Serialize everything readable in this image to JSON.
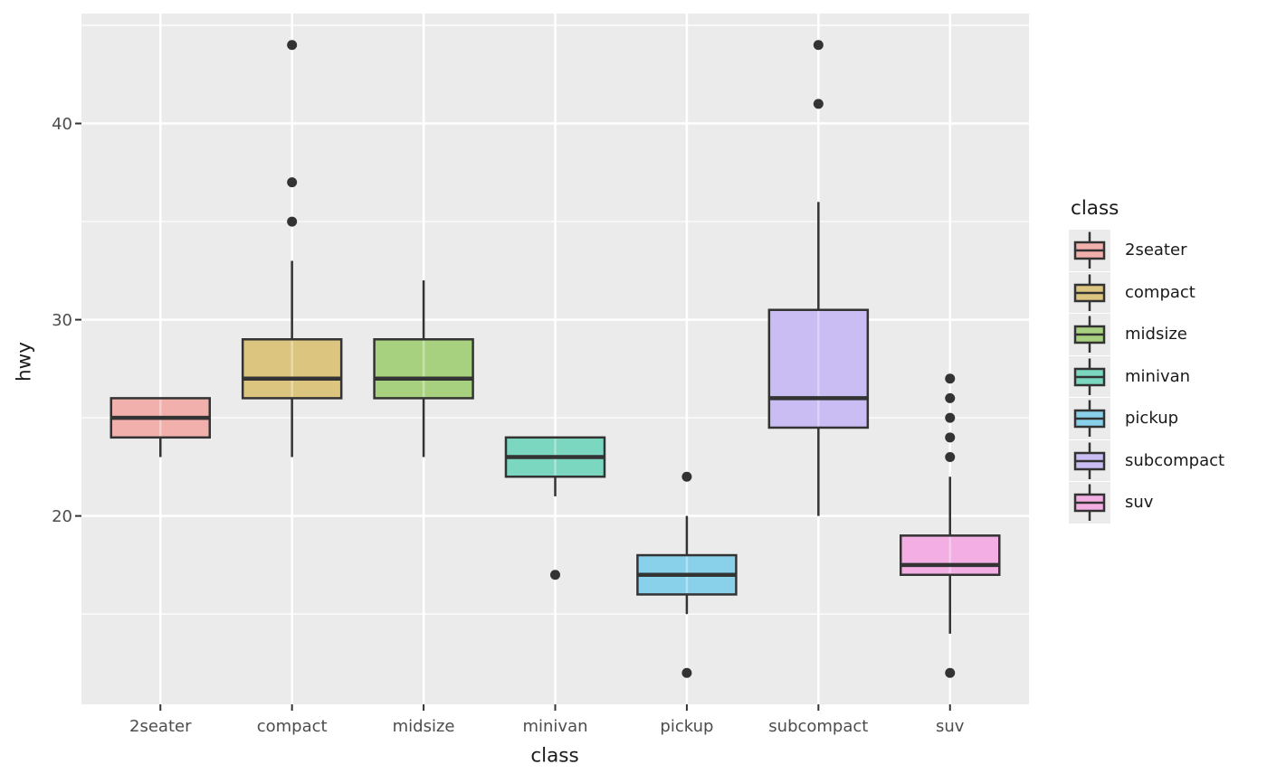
{
  "chart_data": {
    "type": "boxplot",
    "xlabel": "class",
    "ylabel": "hwy",
    "legend_title": "class",
    "categories": [
      "2seater",
      "compact",
      "midsize",
      "minivan",
      "pickup",
      "subcompact",
      "suv"
    ],
    "y_ticks": [
      40,
      30,
      20
    ],
    "y_minor_ticks": [
      45,
      35,
      25,
      15
    ],
    "y_range": [
      10.4,
      45.6
    ],
    "panel_bg": "#EBEBEB",
    "grid_color": "#FFFFFF",
    "box_stroke": "#333333",
    "outlier_color": "#333333",
    "tick_label_color": "#4D4D4D",
    "series": [
      {
        "label": "2seater",
        "fill": "#F1B0AC",
        "low": 23,
        "q1": 24,
        "median": 25,
        "q3": 26,
        "high": 26,
        "outliers": []
      },
      {
        "label": "compact",
        "fill": "#DCC57E",
        "low": 23,
        "q1": 26,
        "median": 27,
        "q3": 29,
        "high": 33,
        "outliers": [
          35,
          37,
          44
        ]
      },
      {
        "label": "midsize",
        "fill": "#A8D17F",
        "low": 23,
        "q1": 26,
        "median": 27,
        "q3": 29,
        "high": 32,
        "outliers": []
      },
      {
        "label": "minivan",
        "fill": "#7BD7BF",
        "low": 21,
        "q1": 22,
        "median": 23,
        "q3": 24,
        "high": 24,
        "outliers": [
          17
        ]
      },
      {
        "label": "pickup",
        "fill": "#89D1EA",
        "low": 15,
        "q1": 16,
        "median": 17,
        "q3": 18,
        "high": 20,
        "outliers": [
          22,
          12
        ]
      },
      {
        "label": "subcompact",
        "fill": "#C9BDF3",
        "low": 20,
        "q1": 24.5,
        "median": 26,
        "q3": 30.5,
        "high": 36,
        "outliers": [
          41,
          44
        ]
      },
      {
        "label": "suv",
        "fill": "#F3AEE3",
        "low": 14,
        "q1": 17,
        "median": 17.5,
        "q3": 19,
        "high": 22,
        "outliers": [
          23,
          24,
          25,
          26,
          27,
          12
        ]
      }
    ]
  }
}
